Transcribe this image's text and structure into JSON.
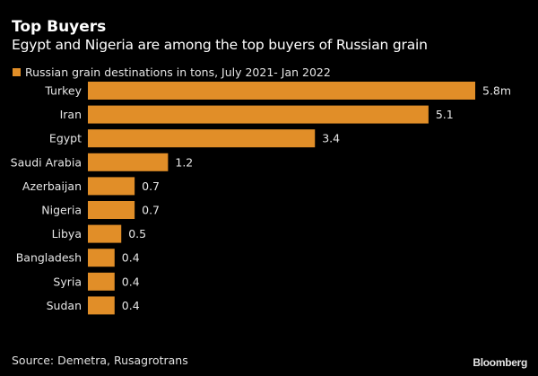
{
  "chart_data": {
    "type": "bar",
    "orientation": "horizontal",
    "title": "Top Buyers",
    "subtitle": "Egypt and Nigeria are among the top buyers of Russian grain",
    "legend": [
      {
        "label": "Russian grain destinations in tons, July 2021- Jan 2022",
        "color": "#e18e28"
      }
    ],
    "legend_position": "top-left",
    "categories": [
      "Turkey",
      "Iran",
      "Egypt",
      "Saudi Arabia",
      "Azerbaijan",
      "Nigeria",
      "Libya",
      "Bangladesh",
      "Syria",
      "Sudan"
    ],
    "values": [
      5.8,
      5.1,
      3.4,
      1.2,
      0.7,
      0.7,
      0.5,
      0.4,
      0.4,
      0.4
    ],
    "value_labels": [
      "5.8m",
      "5.1",
      "3.4",
      "1.2",
      "0.7",
      "0.7",
      "0.5",
      "0.4",
      "0.4",
      "0.4"
    ],
    "unit": "million tons",
    "xlabel": "",
    "ylabel": "",
    "xlim": [
      0,
      5.8
    ],
    "grid": false,
    "bar_color": "#e18e28"
  },
  "footer": {
    "source": "Source: Demetra, Rusagrotrans",
    "brand": "Bloomberg"
  }
}
